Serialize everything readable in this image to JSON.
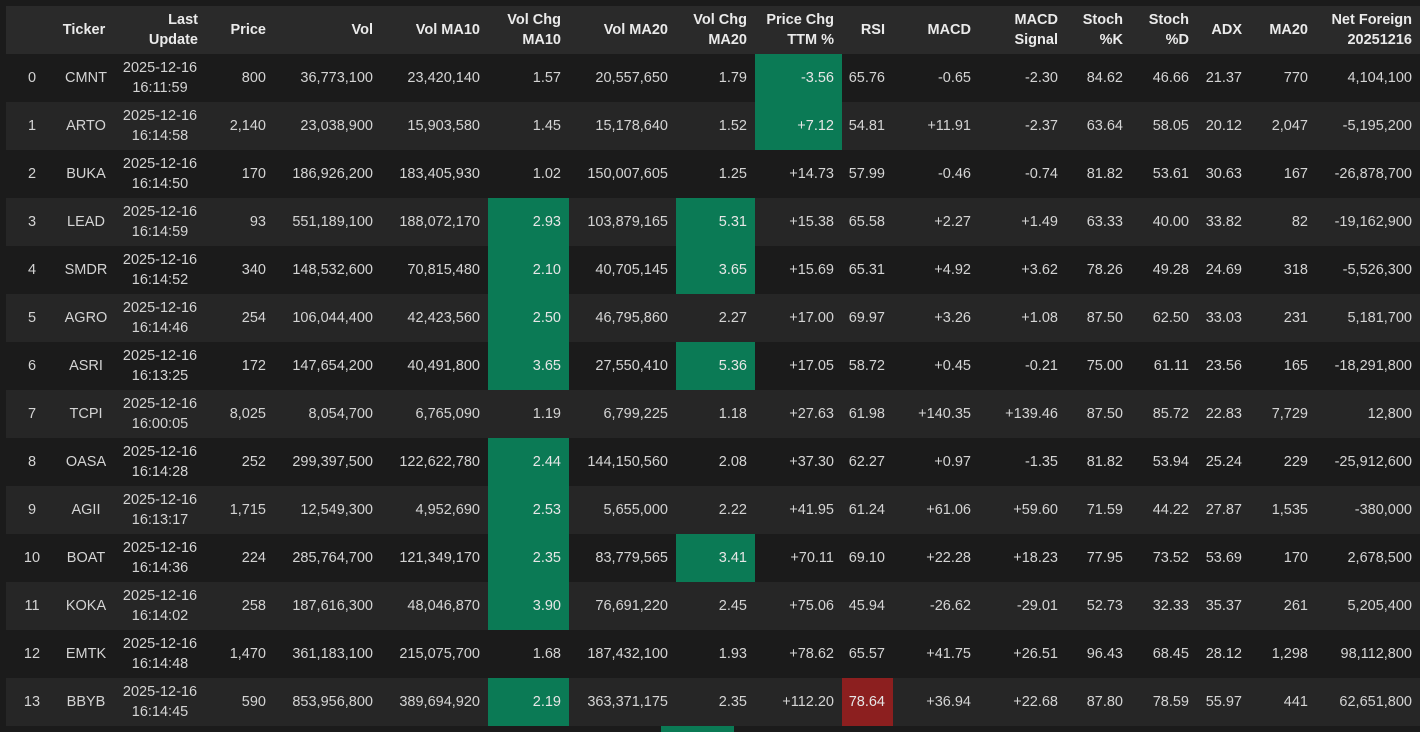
{
  "colors": {
    "background": "#1b1b1b",
    "row_alt": "#262626",
    "header_bg": "#2a2a2a",
    "highlight_green": "#0b7a55",
    "highlight_red": "#8c1f1f",
    "text": "#d4d4d4"
  },
  "table": {
    "columns": [
      {
        "key": "idx",
        "label": ""
      },
      {
        "key": "ticker",
        "label": "Ticker"
      },
      {
        "key": "update",
        "label": "Last Update"
      },
      {
        "key": "price",
        "label": "Price"
      },
      {
        "key": "vol",
        "label": "Vol"
      },
      {
        "key": "vol_ma10",
        "label": "Vol MA10"
      },
      {
        "key": "vol_chg_ma10",
        "label": "Vol Chg MA10"
      },
      {
        "key": "vol_ma20",
        "label": "Vol MA20"
      },
      {
        "key": "vol_chg_ma20",
        "label": "Vol Chg MA20"
      },
      {
        "key": "price_chg_ttm",
        "label": "Price Chg TTM %"
      },
      {
        "key": "rsi",
        "label": "RSI"
      },
      {
        "key": "macd",
        "label": "MACD"
      },
      {
        "key": "macd_signal",
        "label": "MACD Signal"
      },
      {
        "key": "stoch_k",
        "label": "Stoch %K"
      },
      {
        "key": "stoch_d",
        "label": "Stoch %D"
      },
      {
        "key": "adx",
        "label": "ADX"
      },
      {
        "key": "ma20",
        "label": "MA20"
      },
      {
        "key": "net_foreign",
        "label": "Net Foreign 20251216"
      }
    ],
    "rows": [
      {
        "idx": "0",
        "ticker": "CMNT",
        "update": "2025-12-16 16:11:59",
        "price": "800",
        "vol": "36,773,100",
        "vol_ma10": "23,420,140",
        "vol_chg_ma10": "1.57",
        "vol_ma20": "20,557,650",
        "vol_chg_ma20": "1.79",
        "price_chg_ttm": "-3.56",
        "rsi": "65.76",
        "macd": "-0.65",
        "macd_signal": "-2.30",
        "stoch_k": "84.62",
        "stoch_d": "46.66",
        "adx": "21.37",
        "ma20": "770",
        "net_foreign": "4,104,100",
        "highlight": {
          "price_chg_ttm": "green"
        }
      },
      {
        "idx": "1",
        "ticker": "ARTO",
        "update": "2025-12-16 16:14:58",
        "price": "2,140",
        "vol": "23,038,900",
        "vol_ma10": "15,903,580",
        "vol_chg_ma10": "1.45",
        "vol_ma20": "15,178,640",
        "vol_chg_ma20": "1.52",
        "price_chg_ttm": "+7.12",
        "rsi": "54.81",
        "macd": "+11.91",
        "macd_signal": "-2.37",
        "stoch_k": "63.64",
        "stoch_d": "58.05",
        "adx": "20.12",
        "ma20": "2,047",
        "net_foreign": "-5,195,200",
        "highlight": {
          "price_chg_ttm": "green"
        }
      },
      {
        "idx": "2",
        "ticker": "BUKA",
        "update": "2025-12-16 16:14:50",
        "price": "170",
        "vol": "186,926,200",
        "vol_ma10": "183,405,930",
        "vol_chg_ma10": "1.02",
        "vol_ma20": "150,007,605",
        "vol_chg_ma20": "1.25",
        "price_chg_ttm": "+14.73",
        "rsi": "57.99",
        "macd": "-0.46",
        "macd_signal": "-0.74",
        "stoch_k": "81.82",
        "stoch_d": "53.61",
        "adx": "30.63",
        "ma20": "167",
        "net_foreign": "-26,878,700",
        "highlight": {}
      },
      {
        "idx": "3",
        "ticker": "LEAD",
        "update": "2025-12-16 16:14:59",
        "price": "93",
        "vol": "551,189,100",
        "vol_ma10": "188,072,170",
        "vol_chg_ma10": "2.93",
        "vol_ma20": "103,879,165",
        "vol_chg_ma20": "5.31",
        "price_chg_ttm": "+15.38",
        "rsi": "65.58",
        "macd": "+2.27",
        "macd_signal": "+1.49",
        "stoch_k": "63.33",
        "stoch_d": "40.00",
        "adx": "33.82",
        "ma20": "82",
        "net_foreign": "-19,162,900",
        "highlight": {
          "vol_chg_ma10": "green",
          "vol_chg_ma20": "green"
        }
      },
      {
        "idx": "4",
        "ticker": "SMDR",
        "update": "2025-12-16 16:14:52",
        "price": "340",
        "vol": "148,532,600",
        "vol_ma10": "70,815,480",
        "vol_chg_ma10": "2.10",
        "vol_ma20": "40,705,145",
        "vol_chg_ma20": "3.65",
        "price_chg_ttm": "+15.69",
        "rsi": "65.31",
        "macd": "+4.92",
        "macd_signal": "+3.62",
        "stoch_k": "78.26",
        "stoch_d": "49.28",
        "adx": "24.69",
        "ma20": "318",
        "net_foreign": "-5,526,300",
        "highlight": {
          "vol_chg_ma10": "green",
          "vol_chg_ma20": "green"
        }
      },
      {
        "idx": "5",
        "ticker": "AGRO",
        "update": "2025-12-16 16:14:46",
        "price": "254",
        "vol": "106,044,400",
        "vol_ma10": "42,423,560",
        "vol_chg_ma10": "2.50",
        "vol_ma20": "46,795,860",
        "vol_chg_ma20": "2.27",
        "price_chg_ttm": "+17.00",
        "rsi": "69.97",
        "macd": "+3.26",
        "macd_signal": "+1.08",
        "stoch_k": "87.50",
        "stoch_d": "62.50",
        "adx": "33.03",
        "ma20": "231",
        "net_foreign": "5,181,700",
        "highlight": {
          "vol_chg_ma10": "green"
        }
      },
      {
        "idx": "6",
        "ticker": "ASRI",
        "update": "2025-12-16 16:13:25",
        "price": "172",
        "vol": "147,654,200",
        "vol_ma10": "40,491,800",
        "vol_chg_ma10": "3.65",
        "vol_ma20": "27,550,410",
        "vol_chg_ma20": "5.36",
        "price_chg_ttm": "+17.05",
        "rsi": "58.72",
        "macd": "+0.45",
        "macd_signal": "-0.21",
        "stoch_k": "75.00",
        "stoch_d": "61.11",
        "adx": "23.56",
        "ma20": "165",
        "net_foreign": "-18,291,800",
        "highlight": {
          "vol_chg_ma10": "green",
          "vol_chg_ma20": "green"
        }
      },
      {
        "idx": "7",
        "ticker": "TCPI",
        "update": "2025-12-16 16:00:05",
        "price": "8,025",
        "vol": "8,054,700",
        "vol_ma10": "6,765,090",
        "vol_chg_ma10": "1.19",
        "vol_ma20": "6,799,225",
        "vol_chg_ma20": "1.18",
        "price_chg_ttm": "+27.63",
        "rsi": "61.98",
        "macd": "+140.35",
        "macd_signal": "+139.46",
        "stoch_k": "87.50",
        "stoch_d": "85.72",
        "adx": "22.83",
        "ma20": "7,729",
        "net_foreign": "12,800",
        "highlight": {}
      },
      {
        "idx": "8",
        "ticker": "OASA",
        "update": "2025-12-16 16:14:28",
        "price": "252",
        "vol": "299,397,500",
        "vol_ma10": "122,622,780",
        "vol_chg_ma10": "2.44",
        "vol_ma20": "144,150,560",
        "vol_chg_ma20": "2.08",
        "price_chg_ttm": "+37.30",
        "rsi": "62.27",
        "macd": "+0.97",
        "macd_signal": "-1.35",
        "stoch_k": "81.82",
        "stoch_d": "53.94",
        "adx": "25.24",
        "ma20": "229",
        "net_foreign": "-25,912,600",
        "highlight": {
          "vol_chg_ma10": "green"
        }
      },
      {
        "idx": "9",
        "ticker": "AGII",
        "update": "2025-12-16 16:13:17",
        "price": "1,715",
        "vol": "12,549,300",
        "vol_ma10": "4,952,690",
        "vol_chg_ma10": "2.53",
        "vol_ma20": "5,655,000",
        "vol_chg_ma20": "2.22",
        "price_chg_ttm": "+41.95",
        "rsi": "61.24",
        "macd": "+61.06",
        "macd_signal": "+59.60",
        "stoch_k": "71.59",
        "stoch_d": "44.22",
        "adx": "27.87",
        "ma20": "1,535",
        "net_foreign": "-380,000",
        "highlight": {
          "vol_chg_ma10": "green"
        }
      },
      {
        "idx": "10",
        "ticker": "BOAT",
        "update": "2025-12-16 16:14:36",
        "price": "224",
        "vol": "285,764,700",
        "vol_ma10": "121,349,170",
        "vol_chg_ma10": "2.35",
        "vol_ma20": "83,779,565",
        "vol_chg_ma20": "3.41",
        "price_chg_ttm": "+70.11",
        "rsi": "69.10",
        "macd": "+22.28",
        "macd_signal": "+18.23",
        "stoch_k": "77.95",
        "stoch_d": "73.52",
        "adx": "53.69",
        "ma20": "170",
        "net_foreign": "2,678,500",
        "highlight": {
          "vol_chg_ma10": "green",
          "vol_chg_ma20": "green"
        }
      },
      {
        "idx": "11",
        "ticker": "KOKA",
        "update": "2025-12-16 16:14:02",
        "price": "258",
        "vol": "187,616,300",
        "vol_ma10": "48,046,870",
        "vol_chg_ma10": "3.90",
        "vol_ma20": "76,691,220",
        "vol_chg_ma20": "2.45",
        "price_chg_ttm": "+75.06",
        "rsi": "45.94",
        "macd": "-26.62",
        "macd_signal": "-29.01",
        "stoch_k": "52.73",
        "stoch_d": "32.33",
        "adx": "35.37",
        "ma20": "261",
        "net_foreign": "5,205,400",
        "highlight": {
          "vol_chg_ma10": "green"
        }
      },
      {
        "idx": "12",
        "ticker": "EMTK",
        "update": "2025-12-16 16:14:48",
        "price": "1,470",
        "vol": "361,183,100",
        "vol_ma10": "215,075,700",
        "vol_chg_ma10": "1.68",
        "vol_ma20": "187,432,100",
        "vol_chg_ma20": "1.93",
        "price_chg_ttm": "+78.62",
        "rsi": "65.57",
        "macd": "+41.75",
        "macd_signal": "+26.51",
        "stoch_k": "96.43",
        "stoch_d": "68.45",
        "adx": "28.12",
        "ma20": "1,298",
        "net_foreign": "98,112,800",
        "highlight": {}
      },
      {
        "idx": "13",
        "ticker": "BBYB",
        "update": "2025-12-16 16:14:45",
        "price": "590",
        "vol": "853,956,800",
        "vol_ma10": "389,694,920",
        "vol_chg_ma10": "2.19",
        "vol_ma20": "363,371,175",
        "vol_chg_ma20": "2.35",
        "price_chg_ttm": "+112.20",
        "rsi": "78.64",
        "macd": "+36.94",
        "macd_signal": "+22.68",
        "stoch_k": "87.80",
        "stoch_d": "78.59",
        "adx": "55.97",
        "ma20": "441",
        "net_foreign": "62,651,800",
        "highlight": {
          "vol_chg_ma10": "green",
          "rsi": "red"
        }
      }
    ]
  }
}
